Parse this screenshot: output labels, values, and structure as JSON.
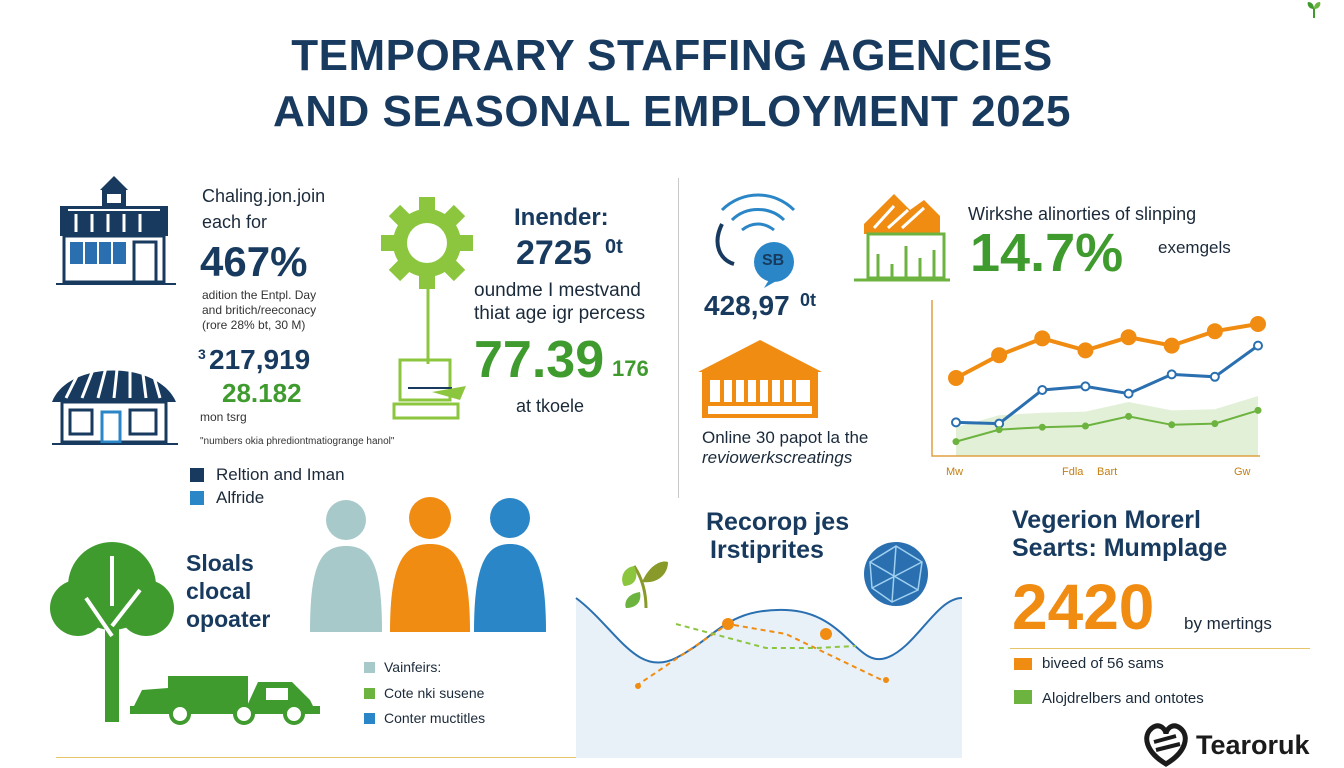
{
  "header": {
    "title_line1": "TEMPORARY STAFFING AGENCIES",
    "title_line2": "AND SEASONAL EMPLOYMENT 2025"
  },
  "panel_left": {
    "line1": "Chaling.jon.join",
    "line2": "each for",
    "big_percent": "467%",
    "note1": "adition the Entpl. Day",
    "note2": "and britich/reeconacy",
    "note3": "(rore 28% bt, 30 M)",
    "stat1": "217,919",
    "stat1_prefix": "3",
    "stat2": "28.182",
    "stat_note": "mon tsrg",
    "footnote": "\"numbers okia phrediontmatiogrange hanol\"",
    "legend": [
      {
        "label": "Reltion and Iman",
        "color": "#173a5e"
      },
      {
        "label": "Alfride",
        "color": "#2a86c6"
      }
    ]
  },
  "panel_gear": {
    "heading": "Inender:",
    "big_value": "2725",
    "big_value_suffix": "0t",
    "line1": "oundme I mestvand",
    "line2": "thiat age igr percess",
    "green_value": "77.39",
    "green_suffix": "176",
    "caption": "at tkoele"
  },
  "panel_review": {
    "badge": "SB",
    "value": "428,97",
    "value_suffix": "0t",
    "caption1": "Online 30 papot la the",
    "caption2": "reviowerkscreatings"
  },
  "panel_chart_top": {
    "heading": "Wirkshe alinorties of slinping",
    "big_percent": "14.7%",
    "side_label": "exemgels",
    "x_labels": [
      "Mw",
      "Fdla",
      "Bart",
      "Gw"
    ]
  },
  "chart_data": {
    "type": "line",
    "x": [
      1,
      2,
      3,
      4,
      5,
      6,
      7,
      8
    ],
    "series": [
      {
        "name": "",
        "color": "#f08c12",
        "values": [
          6.5,
          8.4,
          9.8,
          8.8,
          9.9,
          9.2,
          10.4,
          11.0
        ]
      },
      {
        "name": "",
        "color": "#2a6fb0",
        "values": [
          2.8,
          2.7,
          5.5,
          5.8,
          5.2,
          6.8,
          6.6,
          9.2
        ]
      },
      {
        "name": "",
        "color": "#6cb33f",
        "values": [
          1.2,
          2.2,
          2.4,
          2.5,
          3.3,
          2.6,
          2.7,
          3.8
        ]
      }
    ],
    "ylim": [
      0,
      13
    ]
  },
  "panel_people": {
    "side_text": [
      "Sloals",
      "clocal",
      "opoater"
    ],
    "legend": [
      {
        "label": "Vainfeirs:",
        "color": "#a7c9c9"
      },
      {
        "label": "Cote nki susene",
        "color": "#6cb33f"
      },
      {
        "label": "Conter muctitles",
        "color": "#2a86c6"
      }
    ]
  },
  "panel_wave": {
    "heading1": "Recorop jes",
    "heading2": "Irstiprites"
  },
  "panel_bottom_right": {
    "heading1": "Vegerion Morerl",
    "heading2": "Searts: Mumplage",
    "big_value": "2420",
    "side_label": "by mertings",
    "legend": [
      {
        "label": "biveed of 56 sams",
        "color": "#f08c12"
      },
      {
        "label": "Alojdrelbers and ontotes",
        "color": "#6cb33f"
      }
    ]
  },
  "footer": {
    "brand": "Tearoruk"
  },
  "colors": {
    "navy": "#173a5e",
    "green": "#3f9b2e",
    "orange": "#f08c12",
    "blue": "#2a86c6"
  }
}
